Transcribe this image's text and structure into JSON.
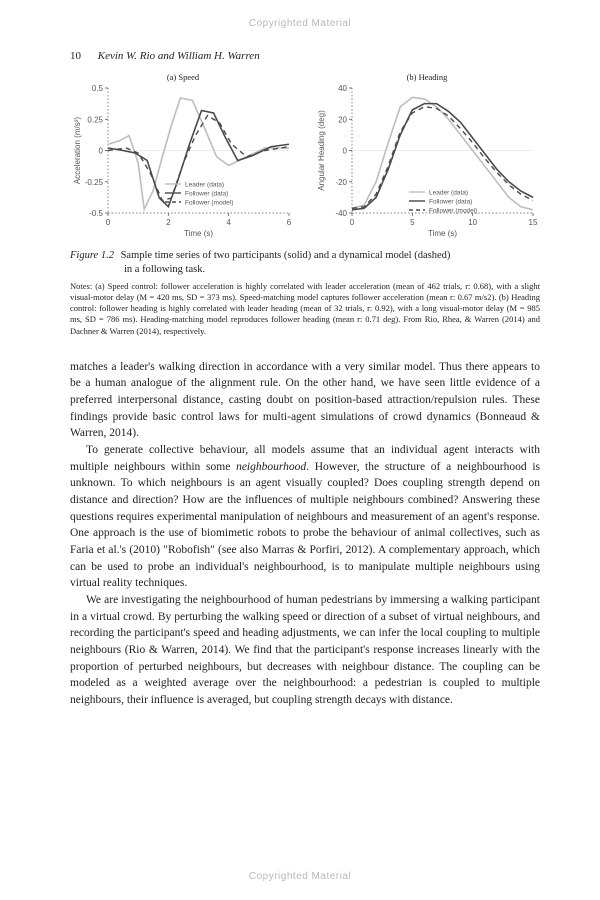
{
  "watermark": "Copyrighted Material",
  "header": {
    "page_number": "10",
    "authors": "Kevin W. Rio and William H. Warren"
  },
  "figure": {
    "panel_a": {
      "title": "(a) Speed",
      "xlabel": "Time (s)",
      "ylabel": "Acceleration (m/s²)",
      "xlim": [
        0,
        6
      ],
      "xticks": [
        0,
        2,
        4,
        6
      ],
      "ylim": [
        -0.5,
        0.5
      ],
      "yticks": [
        -0.5,
        -0.25,
        0,
        0.25,
        0.5
      ],
      "series": {
        "leader": {
          "label": "Leader (data)",
          "color": "#bdbdbd",
          "dash": "none",
          "width": 1.6,
          "pts": [
            [
              0,
              0.05
            ],
            [
              0.4,
              0.08
            ],
            [
              0.7,
              0.12
            ],
            [
              1.0,
              -0.1
            ],
            [
              1.2,
              -0.47
            ],
            [
              1.5,
              -0.32
            ],
            [
              1.8,
              -0.05
            ],
            [
              2.1,
              0.2
            ],
            [
              2.4,
              0.42
            ],
            [
              2.8,
              0.4
            ],
            [
              3.2,
              0.18
            ],
            [
              3.6,
              -0.05
            ],
            [
              4.0,
              -0.12
            ],
            [
              4.6,
              -0.05
            ],
            [
              5.2,
              0.02
            ],
            [
              6.0,
              0.02
            ]
          ]
        },
        "follower": {
          "label": "Follower (data)",
          "color": "#4a4a4a",
          "dash": "none",
          "width": 1.6,
          "pts": [
            [
              0,
              0.02
            ],
            [
              0.5,
              0.0
            ],
            [
              0.9,
              -0.02
            ],
            [
              1.3,
              -0.08
            ],
            [
              1.7,
              -0.38
            ],
            [
              2.0,
              -0.45
            ],
            [
              2.3,
              -0.25
            ],
            [
              2.7,
              0.05
            ],
            [
              3.1,
              0.32
            ],
            [
              3.5,
              0.3
            ],
            [
              3.9,
              0.1
            ],
            [
              4.3,
              -0.08
            ],
            [
              4.8,
              -0.04
            ],
            [
              5.4,
              0.03
            ],
            [
              6.0,
              0.05
            ]
          ]
        },
        "model": {
          "label": "Follower (model)",
          "color": "#4a4a4a",
          "dash": "5,4",
          "width": 1.4,
          "pts": [
            [
              0,
              0.0
            ],
            [
              0.6,
              0.02
            ],
            [
              1.0,
              -0.02
            ],
            [
              1.4,
              -0.18
            ],
            [
              1.8,
              -0.4
            ],
            [
              2.1,
              -0.38
            ],
            [
              2.5,
              -0.1
            ],
            [
              2.9,
              0.12
            ],
            [
              3.3,
              0.28
            ],
            [
              3.7,
              0.22
            ],
            [
              4.1,
              0.05
            ],
            [
              4.6,
              -0.05
            ],
            [
              5.2,
              0.0
            ],
            [
              6.0,
              0.03
            ]
          ]
        }
      }
    },
    "panel_b": {
      "title": "(b) Heading",
      "xlabel": "Time (s)",
      "ylabel": "Angular Heading (deg)",
      "xlim": [
        0,
        15
      ],
      "xticks": [
        0,
        5,
        10,
        15
      ],
      "ylim": [
        -40,
        40
      ],
      "yticks": [
        -40,
        -20,
        0,
        20,
        40
      ],
      "series": {
        "leader": {
          "label": "Leader (data)",
          "color": "#bdbdbd",
          "dash": "none",
          "width": 1.6,
          "pts": [
            [
              0,
              -37
            ],
            [
              1,
              -35
            ],
            [
              2,
              -20
            ],
            [
              3,
              5
            ],
            [
              4,
              28
            ],
            [
              5,
              34
            ],
            [
              6,
              33
            ],
            [
              7,
              28
            ],
            [
              8,
              20
            ],
            [
              9,
              10
            ],
            [
              10,
              0
            ],
            [
              11,
              -10
            ],
            [
              12,
              -20
            ],
            [
              13,
              -30
            ],
            [
              14,
              -36
            ],
            [
              15,
              -38
            ]
          ]
        },
        "follower": {
          "label": "Follower (data)",
          "color": "#4a4a4a",
          "dash": "none",
          "width": 1.6,
          "pts": [
            [
              0,
              -38
            ],
            [
              1,
              -37
            ],
            [
              2,
              -30
            ],
            [
              3,
              -12
            ],
            [
              4,
              10
            ],
            [
              5,
              26
            ],
            [
              6,
              30
            ],
            [
              7,
              30
            ],
            [
              8,
              25
            ],
            [
              9,
              18
            ],
            [
              10,
              8
            ],
            [
              11,
              -2
            ],
            [
              12,
              -12
            ],
            [
              13,
              -20
            ],
            [
              14,
              -26
            ],
            [
              15,
              -30
            ]
          ]
        },
        "model": {
          "label": "Follower (model)",
          "color": "#4a4a4a",
          "dash": "5,4",
          "width": 1.4,
          "pts": [
            [
              0,
              -37
            ],
            [
              1,
              -36
            ],
            [
              2,
              -28
            ],
            [
              3,
              -10
            ],
            [
              4,
              12
            ],
            [
              5,
              24
            ],
            [
              6,
              28
            ],
            [
              7,
              27
            ],
            [
              8,
              22
            ],
            [
              9,
              14
            ],
            [
              10,
              5
            ],
            [
              11,
              -5
            ],
            [
              12,
              -14
            ],
            [
              13,
              -22
            ],
            [
              14,
              -28
            ],
            [
              15,
              -32
            ]
          ]
        }
      }
    },
    "legend_labels": {
      "leader": "Leader (data)",
      "follower": "Follower (data)",
      "model": "Follower (model)"
    },
    "caption_num": "Figure 1.2",
    "caption_text_l1": "Sample time series of two participants (solid) and a dynamical model (dashed)",
    "caption_text_l2": "in a following task.",
    "notes": "Notes: (a) Speed control: follower acceleration is highly correlated with leader acceleration (mean of 462 trials, r: 0.68), with a slight visual-motor delay (M = 420 ms, SD = 373 ms). Speed-matching model captures follower acceleration (mean r: 0.67 m/s2). (b) Heading control: follower heading is highly correlated with leader heading (mean of 32 trials, r: 0.92), with a long visual-motor delay (M = 985 ms, SD = 786 ms). Heading-matching model reproduces follower heading (mean r: 0.71 deg). From Rio, Rhea, & Warren (2014) and Dachner & Warren (2014), respectively."
  },
  "body": {
    "p1": "matches a leader's walking direction in accordance with a very similar model. Thus there appears to be a human analogue of the alignment rule. On the other hand, we have seen little evidence of a preferred interpersonal distance, casting doubt on position-based attraction/repulsion rules. These findings provide basic control laws for multi-agent simulations of crowd dynamics (Bonneaud & Warren, 2014).",
    "p2a": "To generate collective behaviour, all models assume that an individual agent interacts with multiple neighbours within some ",
    "p2_it": "neighbourhood",
    "p2b": ". However, the structure of a neighbourhood is unknown. To which neighbours is an agent visually coupled? Does coupling strength depend on distance and direction? How are the influences of multiple neighbours combined? Answering these questions requires experimental manipulation of neighbours and measurement of an agent's response. One approach is the use of biomimetic robots to probe the behaviour of animal collectives, such as Faria et al.'s (2010) \"Robofish\" (see also Marras & Porfiri, 2012). A complementary approach, which can be used to probe an individual's neighbourhood, is to manipulate multiple neighbours using virtual reality techniques.",
    "p3": "We are investigating the neighbourhood of human pedestrians by immersing a walking participant in a virtual crowd. By perturbing the walking speed or direction of a subset of virtual neighbours, and recording the participant's speed and heading adjustments, we can infer the local coupling to multiple neighbours (Rio & Warren, 2014). We find that the participant's response increases linearly with the proportion of perturbed neighbours, but decreases with neighbour distance. The coupling can be modeled as a weighted average over the neighbourhood: a pedestrian is coupled to multiple neighbours, their influence is averaged, but coupling strength decays with distance."
  },
  "style": {
    "axis_color": "#555555",
    "axis_font": "8",
    "plot_bg": "#ffffff",
    "font_family": "Arial, sans-serif"
  }
}
